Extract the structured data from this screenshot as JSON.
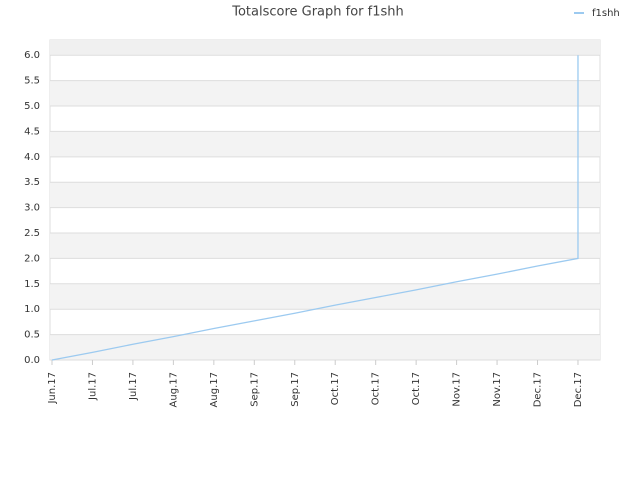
{
  "chart_data": {
    "type": "line",
    "title": "Totalscore Graph for f1shh",
    "categories": [
      "Jun.17",
      "Jul.17",
      "Jul.17",
      "Aug.17",
      "Aug.17",
      "Sep.17",
      "Sep.17",
      "Oct.17",
      "Oct.17",
      "Oct.17",
      "Nov.17",
      "Nov.17",
      "Dec.17",
      "Dec.17",
      null
    ],
    "series": [
      {
        "name": "f1shh",
        "color": "#9ccaf0",
        "values": [
          0,
          0.15,
          0.31,
          0.46,
          0.62,
          0.77,
          0.92,
          1.08,
          1.23,
          1.38,
          1.54,
          1.69,
          1.85,
          2.0,
          6.0
        ]
      }
    ],
    "ylim": [
      0,
      6.3
    ],
    "yticks": [
      {
        "value": 0,
        "label": "0.0"
      },
      0.5,
      {
        "value": 1,
        "label": "1.0"
      },
      1.5,
      {
        "value": 2,
        "label": "2.0"
      },
      2.5,
      {
        "value": 3,
        "label": "3.0"
      },
      3.5,
      {
        "value": 4,
        "label": "4.0"
      },
      4.5,
      {
        "value": 5,
        "label": "5.0"
      },
      5.5,
      {
        "value": 6,
        "label": "6.0"
      }
    ],
    "grid": true,
    "legend": "top-right"
  }
}
